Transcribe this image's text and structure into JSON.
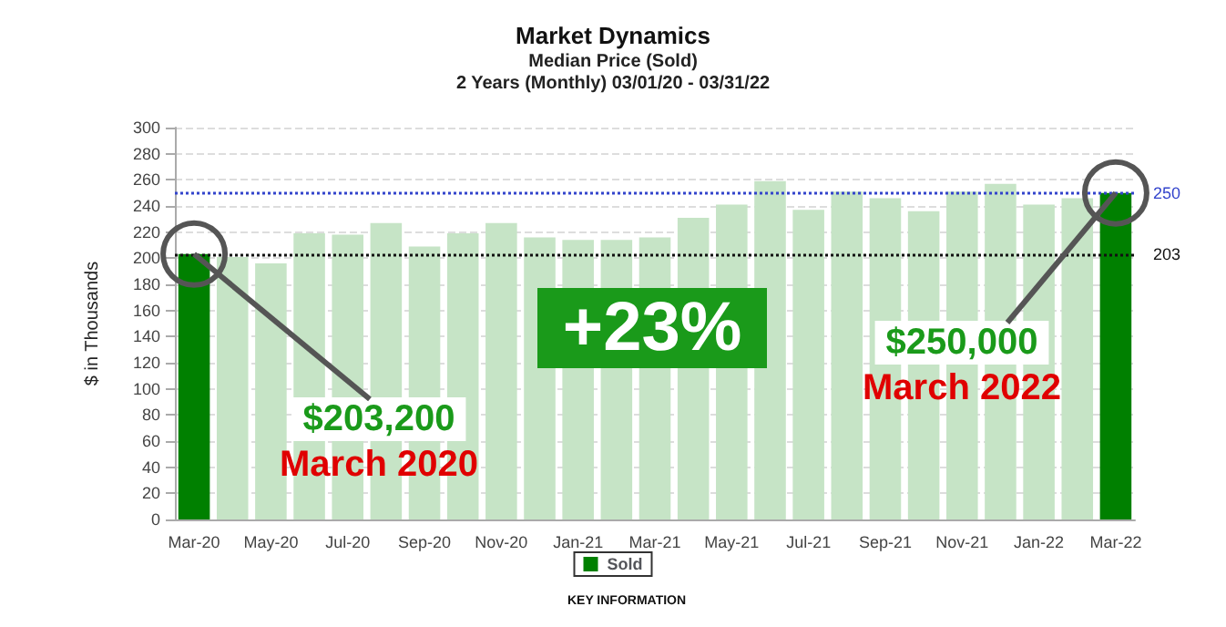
{
  "chart_data": {
    "type": "bar",
    "title": "Market Dynamics",
    "subtitle": "Median Price (Sold)\n2 Years (Monthly) 03/01/20 - 03/31/22",
    "ylabel": "$ in Thousands",
    "categories": [
      "Mar-20",
      null,
      "May-20",
      null,
      "Jul-20",
      null,
      "Sep-20",
      null,
      "Nov-20",
      null,
      "Jan-21",
      null,
      "Mar-21",
      null,
      "May-21",
      null,
      "Jul-21",
      null,
      "Sep-21",
      null,
      "Nov-21",
      null,
      "Jan-22",
      null,
      "Mar-22"
    ],
    "series": [
      {
        "name": "Sold",
        "color": "#008000",
        "colors": [
          "#008000",
          "#c6e4c6",
          "#c6e4c6",
          "#c6e4c6",
          "#c6e4c6",
          "#c6e4c6",
          "#c6e4c6",
          "#c6e4c6",
          "#c6e4c6",
          "#c6e4c6",
          "#c6e4c6",
          "#c6e4c6",
          "#c6e4c6",
          "#c6e4c6",
          "#c6e4c6",
          "#c6e4c6",
          "#c6e4c6",
          "#c6e4c6",
          "#c6e4c6",
          "#c6e4c6",
          "#c6e4c6",
          "#c6e4c6",
          "#c6e4c6",
          "#c6e4c6",
          "#008000"
        ],
        "values": [
          203.2,
          201,
          196,
          219,
          218,
          227,
          209,
          219,
          227,
          216,
          214,
          214,
          216,
          231,
          241,
          259,
          237,
          251,
          246,
          236,
          251,
          257,
          241,
          246,
          250
        ]
      }
    ],
    "ylim": [
      0,
      300
    ],
    "yticks": [
      0,
      20,
      40,
      60,
      80,
      100,
      120,
      140,
      160,
      180,
      200,
      220,
      240,
      260,
      280,
      300
    ],
    "grid": "y",
    "legend": "bottom",
    "ref_lines": [
      {
        "axis": "y",
        "value": 250,
        "label": "250",
        "color": "#3344cc",
        "line_style": "dotted"
      },
      {
        "axis": "y",
        "value": 203,
        "label": "203",
        "color": "#111111",
        "line_style": "dotted"
      }
    ],
    "annotations": [
      {
        "text": "$203,200\nMarch 2020",
        "x": "Mar-20",
        "y": 203.2
      },
      "+23%",
      {
        "text": "$250,000\nMarch 2022",
        "x": "Mar-22",
        "y": 250
      },
      "KEY INFORMATION"
    ]
  }
}
